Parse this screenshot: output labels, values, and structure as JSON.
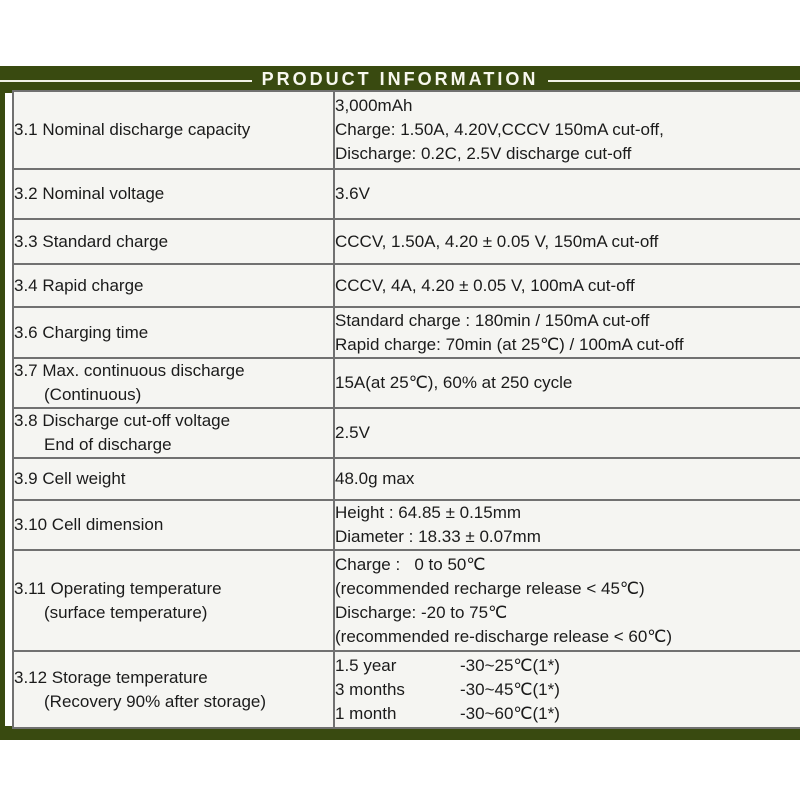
{
  "colors": {
    "frame_green": "#394a10",
    "cell_background": "#f5f5f2",
    "border_gray": "#717171",
    "text": "#1b1b1b"
  },
  "header": {
    "title": "PRODUCT INFORMATION"
  },
  "table": {
    "rows": [
      {
        "label": [
          "3.1 Nominal discharge capacity"
        ],
        "value": [
          "3,000mAh",
          "Charge: 1.50A, 4.20V,CCCV 150mA cut-off,",
          "Discharge: 0.2C, 2.5V discharge cut-off"
        ]
      },
      {
        "label": [
          "3.2 Nominal voltage"
        ],
        "value": [
          "3.6V"
        ]
      },
      {
        "label": [
          "3.3 Standard charge"
        ],
        "value": [
          "CCCV, 1.50A, 4.20 ± 0.05 V, 150mA cut-off"
        ]
      },
      {
        "label": [
          "3.4 Rapid charge"
        ],
        "value": [
          "CCCV, 4A, 4.20 ± 0.05 V, 100mA cut-off"
        ]
      },
      {
        "label": [
          "3.6 Charging time"
        ],
        "value": [
          "Standard charge : 180min / 150mA cut-off",
          "Rapid charge: 70min (at 25℃) / 100mA cut-off"
        ]
      },
      {
        "label": [
          "3.7 Max. continuous discharge",
          "(Continuous)"
        ],
        "value": [
          "15A(at 25℃), 60% at 250 cycle"
        ]
      },
      {
        "label": [
          "3.8 Discharge cut-off voltage",
          "End of discharge"
        ],
        "value": [
          "2.5V"
        ]
      },
      {
        "label": [
          "3.9 Cell weight"
        ],
        "value": [
          "48.0g max"
        ]
      },
      {
        "label": [
          "3.10 Cell dimension"
        ],
        "value": [
          "Height : 64.85 ± 0.15mm",
          "Diameter : 18.33 ± 0.07mm"
        ]
      },
      {
        "label": [
          "3.11 Operating temperature",
          "(surface temperature)"
        ],
        "value": [
          "Charge :   0 to 50℃",
          "(recommended recharge release < 45℃)",
          "Discharge: -20 to 75℃",
          "(recommended re-discharge release < 60℃)"
        ]
      },
      {
        "label": [
          "3.12 Storage temperature",
          "(Recovery 90% after storage)"
        ],
        "value": [
          [
            "1.5 year",
            "-30~25℃(1*)"
          ],
          [
            "3 months",
            "-30~45℃(1*)"
          ],
          [
            "1 month",
            "-30~60℃(1*)"
          ]
        ]
      }
    ]
  }
}
